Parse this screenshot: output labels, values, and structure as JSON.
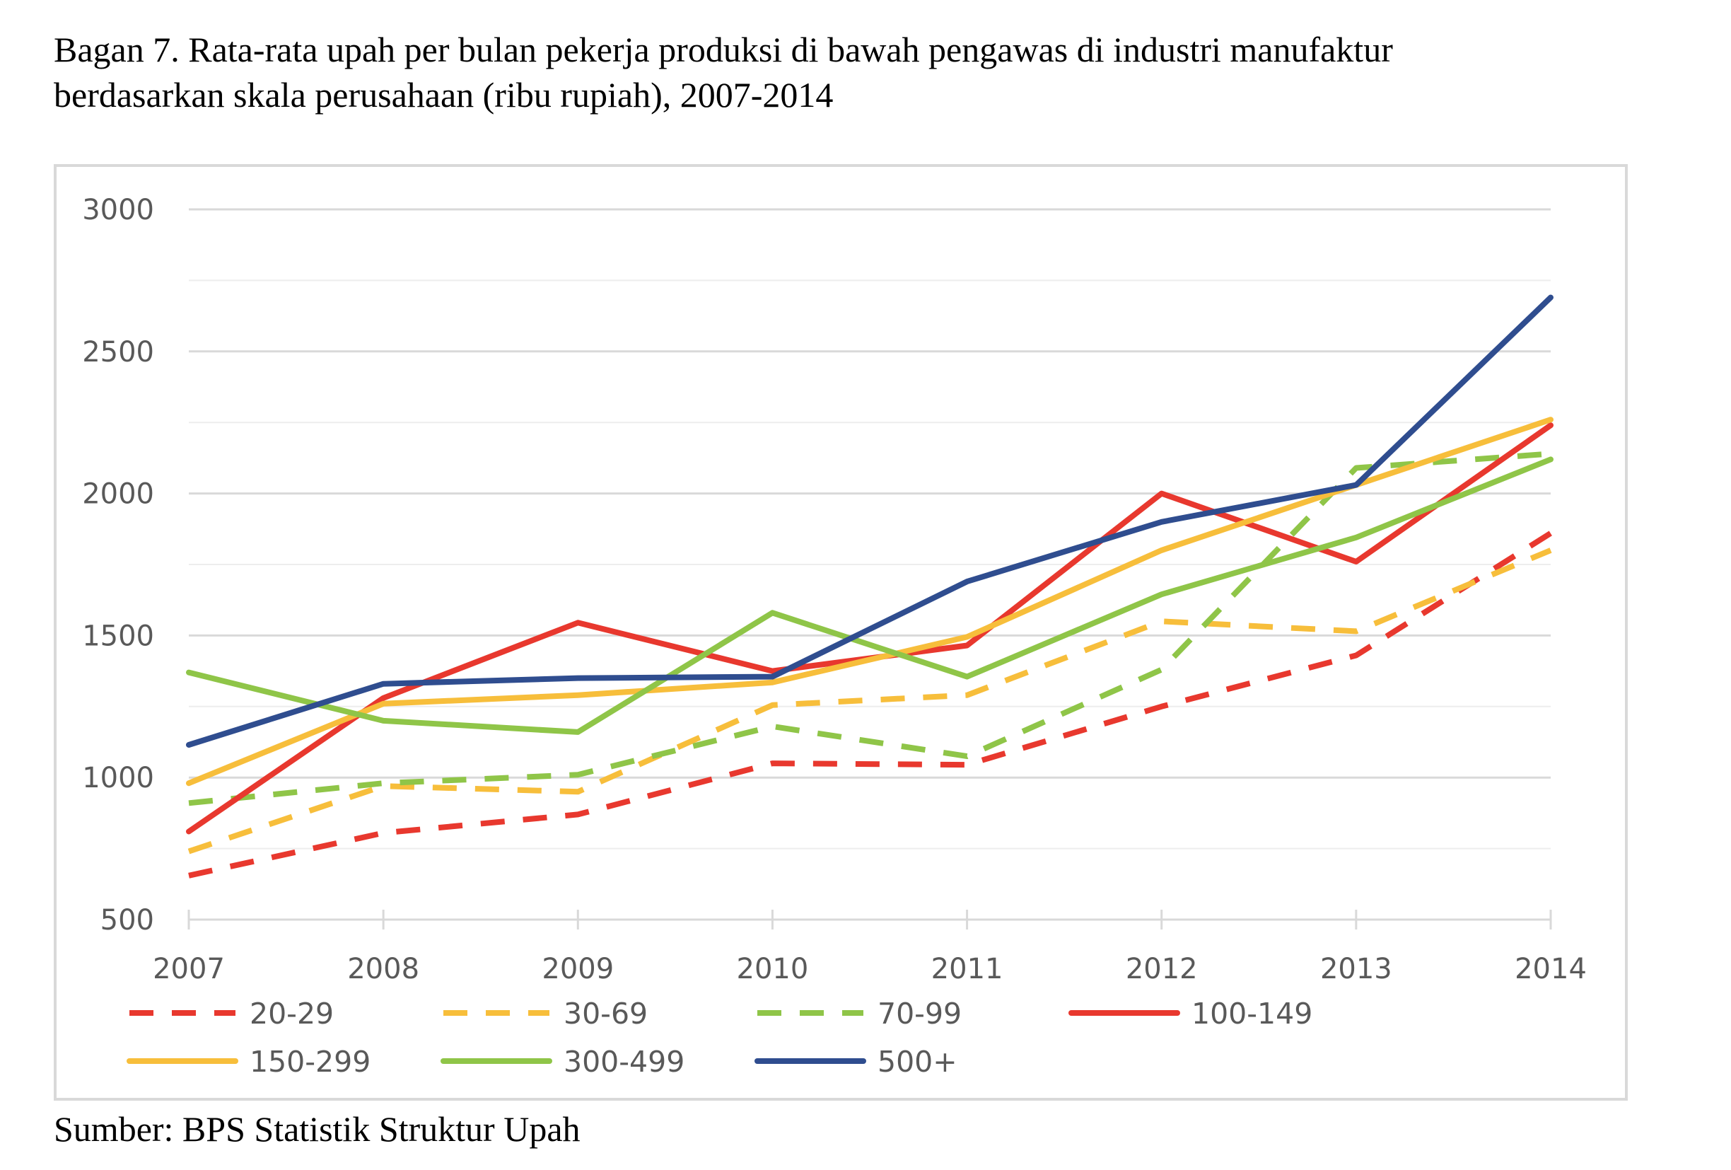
{
  "title_line1": "Bagan 7. Rata-rata upah per bulan pekerja produksi di bawah pengawas di industri manufaktur",
  "title_line2": "berdasarkan skala perusahaan (ribu rupiah), 2007-2014",
  "source": "Sumber: BPS Statistik Struktur Upah",
  "chart_data": {
    "type": "line",
    "title": "",
    "xlabel": "",
    "ylabel": "",
    "x": [
      "2007",
      "2008",
      "2009",
      "2010",
      "2011",
      "2012",
      "2013",
      "2014"
    ],
    "ylim": [
      500,
      3000
    ],
    "yticks": [
      500,
      1000,
      1500,
      2000,
      2500,
      3000
    ],
    "grid": true,
    "legend_position": "bottom",
    "series": [
      {
        "name": "20-29",
        "color": "#E8382E",
        "dash": true,
        "values": [
          655,
          805,
          870,
          1050,
          1045,
          1250,
          1430,
          1860
        ]
      },
      {
        "name": "30-69",
        "color": "#F7BE3B",
        "dash": true,
        "values": [
          740,
          970,
          950,
          1255,
          1290,
          1550,
          1515,
          1800
        ]
      },
      {
        "name": "70-99",
        "color": "#8FC548",
        "dash": true,
        "values": [
          910,
          980,
          1010,
          1180,
          1075,
          1380,
          2090,
          2140
        ]
      },
      {
        "name": "100-149",
        "color": "#E8382E",
        "dash": false,
        "values": [
          810,
          1280,
          1545,
          1375,
          1465,
          2000,
          1760,
          2240
        ]
      },
      {
        "name": "150-299",
        "color": "#F7BE3B",
        "dash": false,
        "values": [
          980,
          1260,
          1290,
          1335,
          1495,
          1800,
          2030,
          2260
        ]
      },
      {
        "name": "300-499",
        "color": "#8FC548",
        "dash": false,
        "values": [
          1370,
          1200,
          1160,
          1580,
          1355,
          1645,
          1845,
          2120
        ]
      },
      {
        "name": "500+",
        "color": "#2F4D8F",
        "dash": false,
        "values": [
          1115,
          1330,
          1350,
          1355,
          1690,
          1900,
          2030,
          2690
        ]
      }
    ]
  }
}
